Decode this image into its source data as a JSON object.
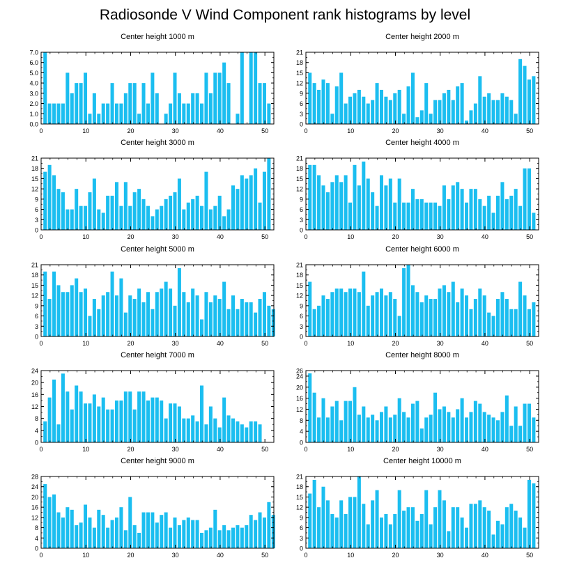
{
  "title": "Radiosonde V Wind Component rank histograms by level",
  "bar_color": "#1bbef0",
  "chart_data": [
    {
      "type": "bar",
      "title": "Center height 1000 m",
      "xlabel": "",
      "ylabel": "",
      "xlim": [
        0,
        52
      ],
      "ylim": [
        0,
        7
      ],
      "yticks": [
        0,
        1,
        2,
        3,
        4,
        5,
        6,
        7
      ],
      "ytick_labels": [
        "0.0",
        "1.0",
        "2.0",
        "3.0",
        "4.0",
        "5.0",
        "6.0",
        "7.0"
      ],
      "xticks": [
        0,
        10,
        20,
        30,
        40,
        50
      ],
      "values": [
        7,
        2,
        2,
        2,
        2,
        5,
        3,
        4,
        4,
        5,
        1,
        3,
        1,
        2,
        2,
        4,
        2,
        2,
        3,
        4,
        4,
        1,
        4,
        2,
        5,
        3,
        0,
        1,
        2,
        5,
        3,
        2,
        2,
        3,
        3,
        2,
        5,
        3,
        5,
        5,
        6,
        4,
        0,
        1,
        7,
        0,
        7,
        7,
        4,
        4,
        2
      ]
    },
    {
      "type": "bar",
      "title": "Center height 2000 m",
      "xlabel": "",
      "ylabel": "",
      "xlim": [
        0,
        52
      ],
      "ylim": [
        0,
        21
      ],
      "yticks": [
        0,
        3,
        6,
        9,
        12,
        15,
        18,
        21
      ],
      "ytick_labels": [
        "0",
        "3",
        "6",
        "9",
        "12",
        "15",
        "18",
        "21"
      ],
      "xticks": [
        0,
        10,
        20,
        30,
        40,
        50
      ],
      "values": [
        15,
        12,
        10,
        13,
        12,
        3,
        11,
        15,
        6,
        8,
        9,
        10,
        8,
        6,
        7,
        12,
        10,
        8,
        7,
        9,
        10,
        3,
        11,
        15,
        2,
        4,
        12,
        3,
        7,
        7,
        9,
        10,
        7,
        11,
        12,
        1,
        4,
        6,
        14,
        8,
        9,
        7,
        7,
        9,
        8,
        7,
        3,
        19,
        17,
        13,
        14
      ]
    },
    {
      "type": "bar",
      "title": "Center height 3000 m",
      "xlabel": "",
      "ylabel": "",
      "xlim": [
        0,
        52
      ],
      "ylim": [
        0,
        21
      ],
      "yticks": [
        0,
        3,
        6,
        9,
        12,
        15,
        18,
        21
      ],
      "ytick_labels": [
        "0",
        "3",
        "6",
        "9",
        "12",
        "15",
        "18",
        "21"
      ],
      "xticks": [
        0,
        10,
        20,
        30,
        40,
        50
      ],
      "values": [
        17,
        19,
        16,
        12,
        11,
        6,
        6,
        12,
        7,
        7,
        11,
        15,
        6,
        5,
        10,
        10,
        14,
        7,
        14,
        7,
        11,
        12,
        9,
        7,
        4,
        6,
        7,
        9,
        10,
        11,
        15,
        6,
        8,
        9,
        10,
        7,
        17,
        6,
        7,
        10,
        4,
        6,
        13,
        12,
        16,
        15,
        16,
        18,
        8,
        17,
        21
      ]
    },
    {
      "type": "bar",
      "title": "Center height 4000 m",
      "xlabel": "",
      "ylabel": "",
      "xlim": [
        0,
        52
      ],
      "ylim": [
        0,
        21
      ],
      "yticks": [
        0,
        3,
        6,
        9,
        12,
        15,
        18,
        21
      ],
      "ytick_labels": [
        "0",
        "3",
        "6",
        "9",
        "12",
        "15",
        "18",
        "21"
      ],
      "xticks": [
        0,
        10,
        20,
        30,
        40,
        50
      ],
      "values": [
        19,
        19,
        16,
        13,
        11,
        14,
        16,
        14,
        16,
        8,
        19,
        13,
        20,
        15,
        11,
        7,
        16,
        13,
        15,
        8,
        15,
        8,
        8,
        12,
        9,
        9,
        8,
        8,
        8,
        7,
        13,
        9,
        13,
        14,
        12,
        8,
        12,
        12,
        9,
        7,
        10,
        5,
        10,
        14,
        9,
        10,
        12,
        7,
        18,
        18,
        5
      ]
    },
    {
      "type": "bar",
      "title": "Center height 5000 m",
      "xlabel": "",
      "ylabel": "",
      "xlim": [
        0,
        52
      ],
      "ylim": [
        0,
        21
      ],
      "yticks": [
        0,
        3,
        6,
        9,
        12,
        15,
        18,
        21
      ],
      "ytick_labels": [
        "0",
        "3",
        "6",
        "9",
        "12",
        "15",
        "18",
        "21"
      ],
      "xticks": [
        0,
        10,
        20,
        30,
        40,
        50
      ],
      "values": [
        19,
        11,
        19,
        15,
        13,
        13,
        15,
        17,
        13,
        14,
        6,
        11,
        8,
        12,
        13,
        19,
        12,
        17,
        7,
        12,
        11,
        14,
        10,
        13,
        8,
        13,
        14,
        16,
        14,
        9,
        20,
        13,
        10,
        14,
        12,
        5,
        13,
        10,
        12,
        11,
        16,
        8,
        12,
        8,
        11,
        10,
        10,
        7,
        11,
        13,
        9,
        8
      ]
    },
    {
      "type": "bar",
      "title": "Center height 6000 m",
      "xlabel": "",
      "ylabel": "",
      "xlim": [
        0,
        52
      ],
      "ylim": [
        0,
        21
      ],
      "yticks": [
        0,
        3,
        6,
        9,
        12,
        15,
        18,
        21
      ],
      "ytick_labels": [
        "0",
        "3",
        "6",
        "9",
        "12",
        "15",
        "18",
        "21"
      ],
      "xticks": [
        0,
        10,
        20,
        30,
        40,
        50
      ],
      "values": [
        16,
        8,
        9,
        12,
        11,
        13,
        14,
        14,
        13,
        14,
        14,
        13,
        19,
        9,
        12,
        13,
        14,
        12,
        13,
        11,
        6,
        20,
        21,
        15,
        13,
        10,
        12,
        11,
        11,
        14,
        15,
        13,
        16,
        10,
        14,
        12,
        8,
        11,
        14,
        12,
        7,
        6,
        11,
        13,
        11,
        8,
        8,
        16,
        12,
        8,
        10
      ]
    },
    {
      "type": "bar",
      "title": "Center height 7000 m",
      "xlabel": "",
      "ylabel": "",
      "xlim": [
        0,
        52
      ],
      "ylim": [
        0,
        24
      ],
      "yticks": [
        0,
        4,
        8,
        12,
        16,
        20,
        24
      ],
      "ytick_labels": [
        "0",
        "4",
        "8",
        "12",
        "16",
        "20",
        "24"
      ],
      "xticks": [
        0,
        10,
        20,
        30,
        40,
        50
      ],
      "values": [
        7,
        15,
        21,
        6,
        23,
        17,
        11,
        19,
        17,
        13,
        13,
        16,
        12,
        15,
        11,
        11,
        14,
        14,
        17,
        17,
        11,
        17,
        17,
        14,
        15,
        15,
        14,
        8,
        13,
        13,
        12,
        8,
        8,
        9,
        7,
        19,
        6,
        12,
        8,
        5,
        15,
        9,
        8,
        7,
        6,
        5,
        7,
        7,
        6
      ]
    },
    {
      "type": "bar",
      "title": "Center height 8000 m",
      "xlabel": "",
      "ylabel": "",
      "xlim": [
        0,
        52
      ],
      "ylim": [
        0,
        26
      ],
      "yticks": [
        0,
        4,
        8,
        12,
        16,
        20,
        24,
        26
      ],
      "ytick_labels": [
        "0",
        "4",
        "8",
        "12",
        "16",
        "20",
        "24",
        "26"
      ],
      "xticks": [
        0,
        10,
        20,
        30,
        40,
        50
      ],
      "values": [
        25,
        18,
        9,
        16,
        9,
        13,
        15,
        8,
        15,
        15,
        20,
        10,
        13,
        9,
        10,
        8,
        11,
        13,
        9,
        10,
        16,
        11,
        9,
        14,
        15,
        5,
        9,
        10,
        18,
        12,
        13,
        11,
        9,
        12,
        16,
        9,
        11,
        15,
        14,
        11,
        10,
        9,
        8,
        11,
        17,
        6,
        13,
        6,
        14,
        14,
        9
      ]
    },
    {
      "type": "bar",
      "title": "Center height 9000 m",
      "xlabel": "",
      "ylabel": "",
      "xlim": [
        0,
        52
      ],
      "ylim": [
        0,
        28
      ],
      "yticks": [
        0,
        4,
        8,
        12,
        16,
        20,
        24,
        28
      ],
      "ytick_labels": [
        "0",
        "4",
        "8",
        "12",
        "16",
        "20",
        "24",
        "28"
      ],
      "xticks": [
        0,
        10,
        20,
        30,
        40,
        50
      ],
      "values": [
        25,
        20,
        21,
        14,
        12,
        16,
        15,
        9,
        10,
        17,
        12,
        8,
        15,
        13,
        8,
        11,
        12,
        16,
        7,
        20,
        9,
        6,
        14,
        14,
        14,
        10,
        13,
        14,
        8,
        12,
        9,
        11,
        12,
        11,
        11,
        6,
        7,
        8,
        15,
        7,
        9,
        7,
        8,
        9,
        8,
        9,
        13,
        11,
        14,
        12,
        18,
        13
      ]
    },
    {
      "type": "bar",
      "title": "Center height 10000 m",
      "xlabel": "",
      "ylabel": "",
      "xlim": [
        0,
        52
      ],
      "ylim": [
        0,
        21
      ],
      "yticks": [
        0,
        3,
        6,
        9,
        12,
        15,
        18,
        21
      ],
      "ytick_labels": [
        "0",
        "3",
        "6",
        "9",
        "12",
        "15",
        "18",
        "21"
      ],
      "xticks": [
        0,
        10,
        20,
        30,
        40,
        50
      ],
      "values": [
        16,
        20,
        12,
        18,
        14,
        10,
        9,
        14,
        10,
        15,
        15,
        21,
        13,
        7,
        14,
        17,
        9,
        10,
        7,
        10,
        17,
        11,
        12,
        12,
        8,
        10,
        17,
        7,
        12,
        17,
        14,
        5,
        12,
        12,
        9,
        6,
        13,
        13,
        14,
        12,
        11,
        4,
        8,
        7,
        12,
        13,
        11,
        9,
        6,
        20,
        19
      ]
    }
  ]
}
